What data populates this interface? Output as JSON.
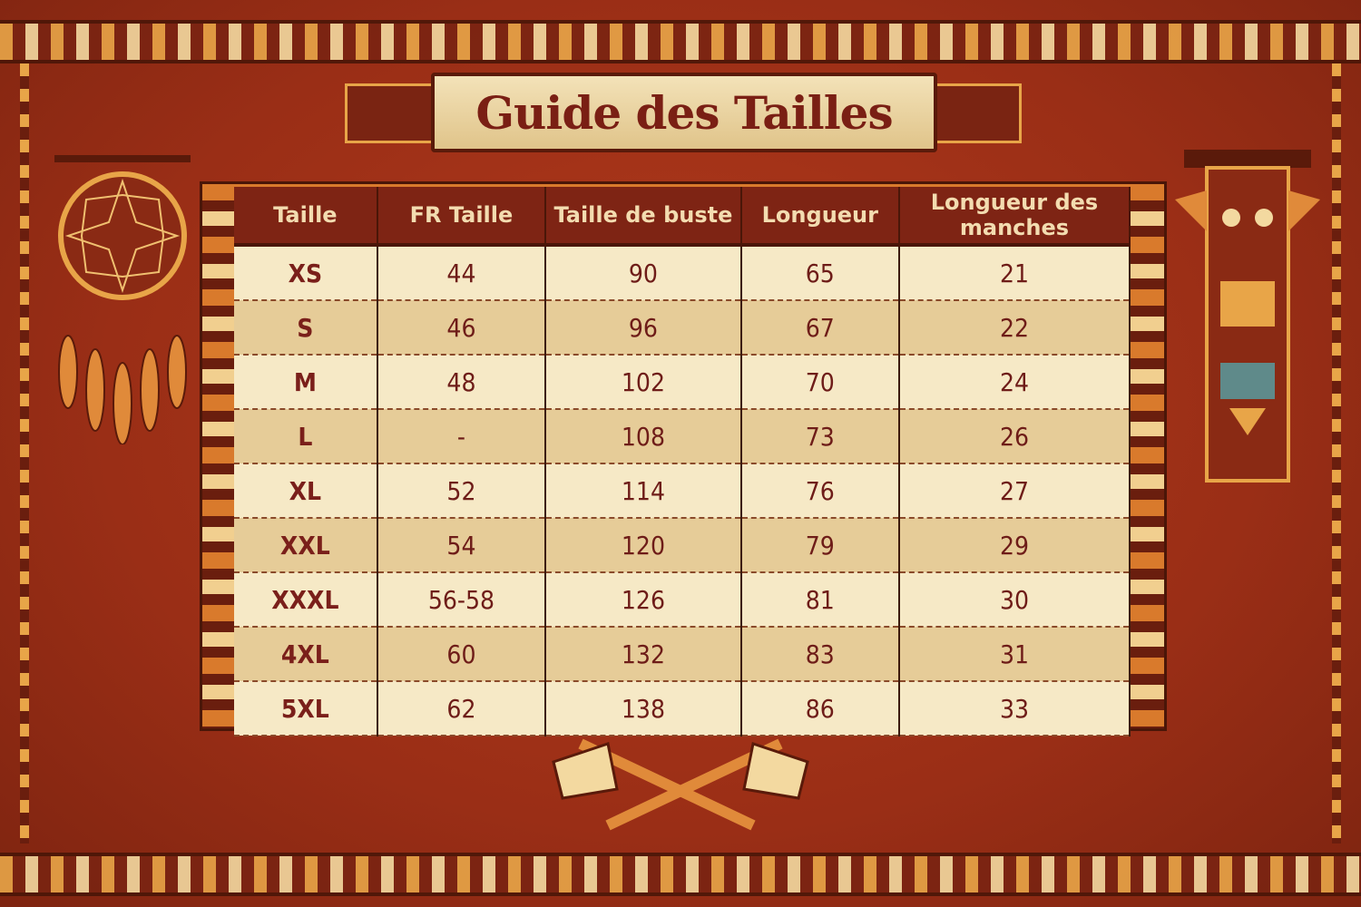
{
  "title": "Guide des Tailles",
  "colors": {
    "background": "#9a2e16",
    "header": "#7e2414",
    "row_light": "#f6e9c6",
    "row_dark": "#e6cc98",
    "text": "#6e1c18"
  },
  "table": {
    "headers": [
      "Taille",
      "FR Taille",
      "Taille de buste",
      "Longueur",
      "Longueur des manches"
    ],
    "rows": [
      [
        "XS",
        "44",
        "90",
        "65",
        "21"
      ],
      [
        "S",
        "46",
        "96",
        "67",
        "22"
      ],
      [
        "M",
        "48",
        "102",
        "70",
        "24"
      ],
      [
        "L",
        "-",
        "108",
        "73",
        "26"
      ],
      [
        "XL",
        "52",
        "114",
        "76",
        "27"
      ],
      [
        "XXL",
        "54",
        "120",
        "79",
        "29"
      ],
      [
        "XXXL",
        "56-58",
        "126",
        "81",
        "30"
      ],
      [
        "4XL",
        "60",
        "132",
        "83",
        "31"
      ],
      [
        "5XL",
        "62",
        "138",
        "86",
        "33"
      ]
    ]
  },
  "decorations": [
    "dreamcatcher-icon",
    "totem-pole-icon",
    "crossed-tomahawks-icon",
    "feather-icon"
  ]
}
